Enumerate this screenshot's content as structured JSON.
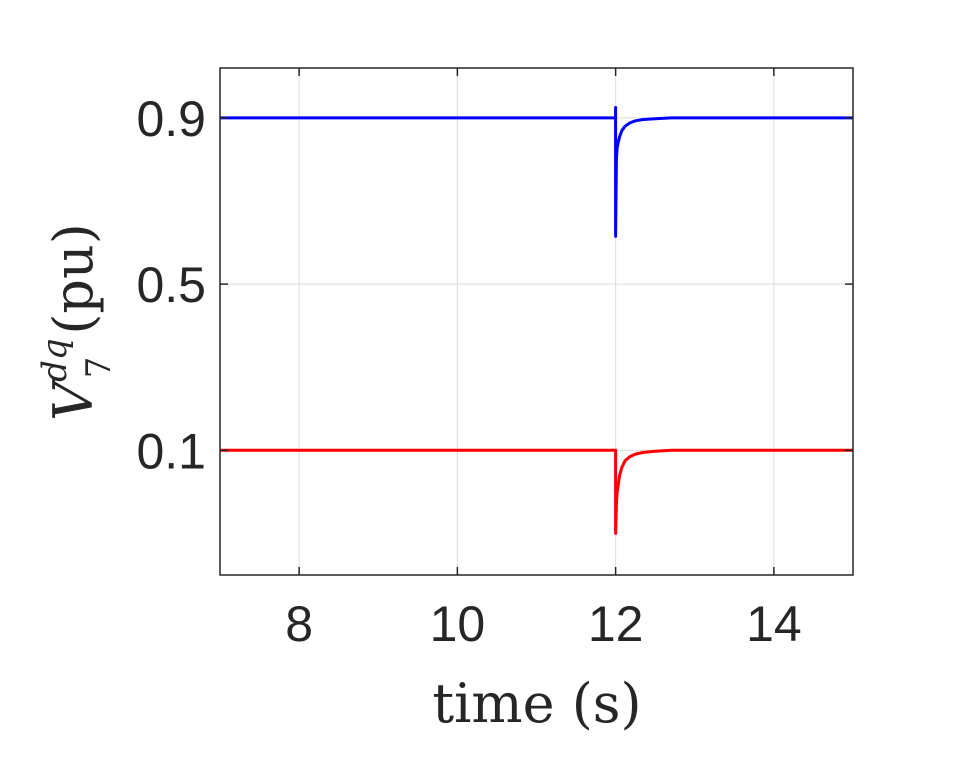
{
  "chart_data": {
    "type": "line",
    "title": "",
    "xlabel": "time (s)",
    "ylabel": {
      "symbol": "V",
      "superscript": "dq",
      "subscript": "7",
      "unit": "(pu)"
    },
    "xlim": [
      7,
      15
    ],
    "ylim": [
      -0.2,
      1.02
    ],
    "xticks": [
      8,
      10,
      12,
      14
    ],
    "yticks": [
      0.1,
      0.5,
      0.9
    ],
    "ytick_labels": [
      "0.1",
      "0.5",
      "0.9"
    ],
    "grid": true,
    "legend": "none",
    "series": [
      {
        "color": "#0000ff",
        "x": [
          7,
          11.999,
          12.0,
          12.0,
          12.01,
          12.02,
          12.05,
          12.08,
          12.12,
          12.18,
          12.25,
          12.35,
          12.5,
          12.7,
          13.0,
          15
        ],
        "y": [
          0.9,
          0.9,
          0.925,
          0.615,
          0.8,
          0.83,
          0.855,
          0.87,
          0.88,
          0.888,
          0.893,
          0.896,
          0.898,
          0.9,
          0.9,
          0.9
        ]
      },
      {
        "color": "#ff0000",
        "x": [
          7,
          11.999,
          12.0,
          12.0,
          12.01,
          12.02,
          12.05,
          12.08,
          12.12,
          12.18,
          12.25,
          12.35,
          12.5,
          12.7,
          13.0,
          15
        ],
        "y": [
          0.1,
          0.1,
          0.1,
          -0.1,
          -0.03,
          0.0,
          0.04,
          0.06,
          0.075,
          0.085,
          0.091,
          0.095,
          0.098,
          0.1,
          0.1,
          0.1
        ]
      }
    ]
  }
}
